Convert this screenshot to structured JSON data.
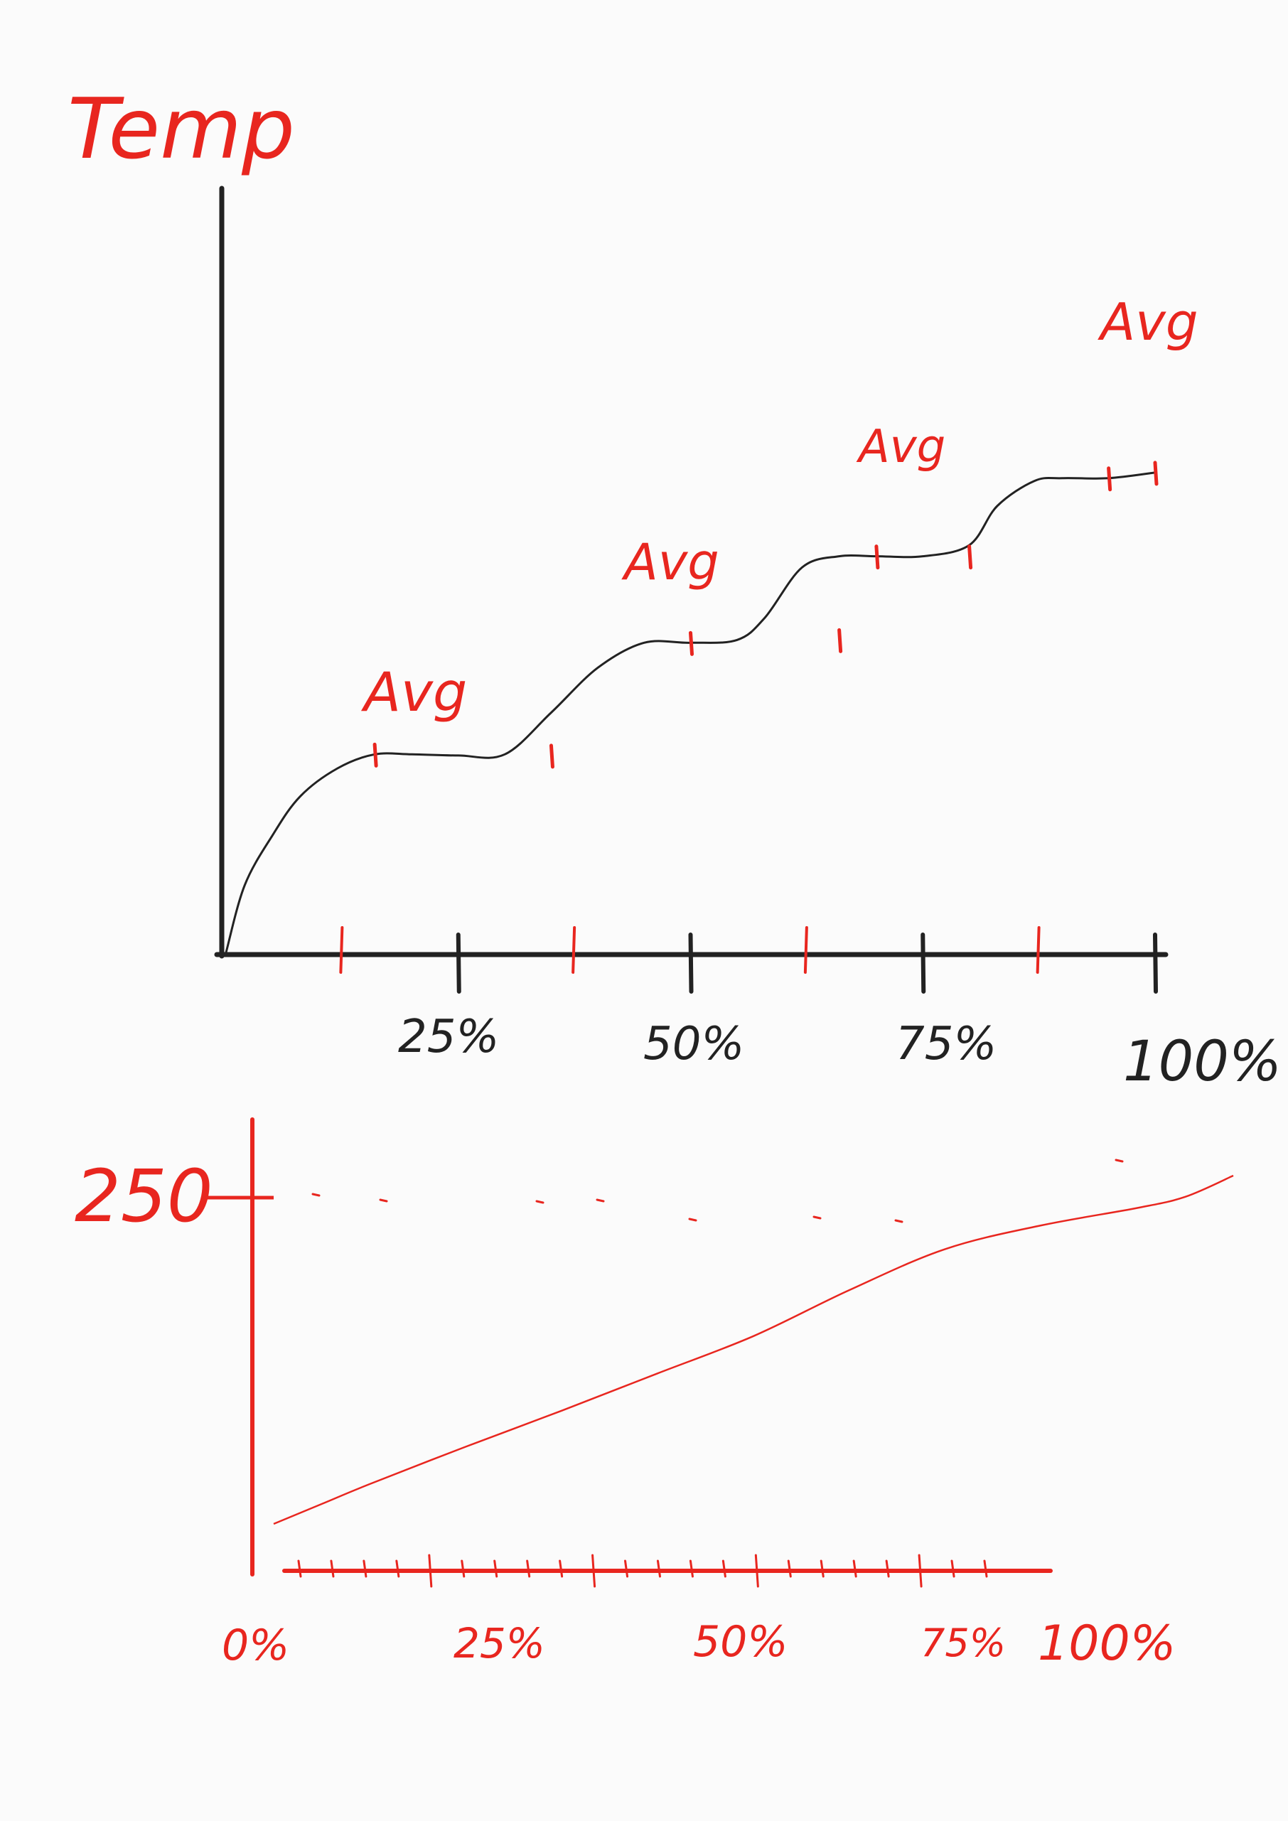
{
  "colors": {
    "paper": "#fbfbfb",
    "ink": "#222222",
    "accent": "#e8261f"
  },
  "chart_data": [
    {
      "type": "line",
      "title": "",
      "ylabel": "Temp",
      "xlabel": "",
      "x_tick_labels": [
        "25%",
        "50%",
        "75%",
        "100%"
      ],
      "xlim": [
        0,
        100
      ],
      "ylim": [
        0,
        100
      ],
      "grid": false,
      "series": [
        {
          "x": [
            0,
            2,
            5,
            8,
            12,
            16,
            20,
            25,
            30,
            35,
            40,
            45,
            50,
            55,
            58,
            62,
            66,
            70,
            75,
            80,
            83,
            87,
            90,
            95,
            100
          ],
          "y": [
            0,
            12,
            21,
            28,
            33,
            35.5,
            35.5,
            35.3,
            35.5,
            43,
            51,
            55.5,
            55.5,
            56,
            60,
            69,
            71,
            71,
            71,
            73,
            80,
            84.5,
            85,
            85,
            86
          ]
        }
      ],
      "annotations": [
        "Avg",
        "Avg",
        "Avg",
        "Avg"
      ]
    },
    {
      "type": "line",
      "title": "",
      "ylabel": "",
      "xlabel": "",
      "y_tick_labels": [
        "250"
      ],
      "x_tick_labels": [
        "0%",
        "25%",
        "50%",
        "75%",
        "100%"
      ],
      "xlim": [
        0,
        100
      ],
      "ylim": [
        0,
        300
      ],
      "grid": false,
      "series": [
        {
          "x": [
            0,
            5,
            10,
            20,
            30,
            40,
            50,
            60,
            70,
            80,
            90,
            95,
            100
          ],
          "y": [
            12,
            28,
            44,
            74,
            103,
            133,
            163,
            200,
            233,
            252,
            266,
            275,
            292
          ]
        }
      ]
    }
  ]
}
